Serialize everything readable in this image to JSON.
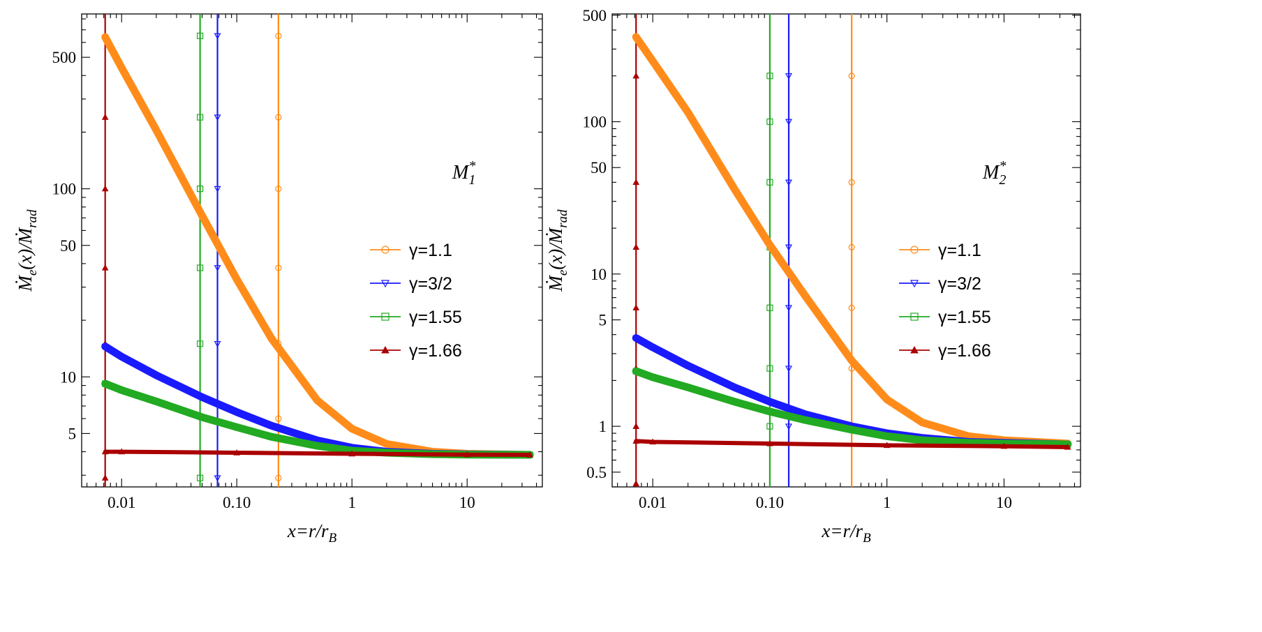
{
  "colors": {
    "gamma_1_1": "#ff8c1a",
    "gamma_3_2": "#1a1aff",
    "gamma_1_55": "#22aa22",
    "gamma_1_66": "#aa0000"
  },
  "chart_data": [
    {
      "type": "line",
      "scale": "log-log",
      "annotation": "M*1",
      "annotation_base": "M",
      "annotation_sub": "1",
      "annotation_sup": "*",
      "xlabel": "x=r/r_B",
      "xlabel_base": "x=r/r",
      "xlabel_sub": "B",
      "ylabel": "Ṁ_e(x)/Ṁ_rad",
      "ylabel_parts": [
        "Ṁ",
        "e",
        "(x)/",
        "Ṁ",
        "rad"
      ],
      "xlim": [
        0.0045,
        45
      ],
      "ylim": [
        2.6,
        850
      ],
      "xticks": [
        {
          "v": 0.01,
          "l": "0.01"
        },
        {
          "v": 0.1,
          "l": "0.10"
        },
        {
          "v": 1,
          "l": "1"
        },
        {
          "v": 10,
          "l": "10"
        }
      ],
      "yticks": [
        {
          "v": 5,
          "l": "5"
        },
        {
          "v": 10,
          "l": "10"
        },
        {
          "v": 50,
          "l": "50"
        },
        {
          "v": 100,
          "l": "100"
        },
        {
          "v": 500,
          "l": "500"
        }
      ],
      "legend_position": "middle-right",
      "series": [
        {
          "name": "γ=1.1",
          "color_key": "gamma_1_1",
          "marker": "circle",
          "x": [
            0.0072,
            0.01,
            0.02,
            0.05,
            0.1,
            0.2,
            0.5,
            1,
            2,
            5,
            10,
            35
          ],
          "y": [
            640,
            440,
            205,
            72,
            33,
            16,
            7.5,
            5.3,
            4.4,
            4.0,
            3.9,
            3.85
          ],
          "vline": {
            "x": 0.23,
            "marker_y": [
              650,
              240,
              100,
              38,
              15,
              6,
              2.9
            ]
          }
        },
        {
          "name": "γ=3/2",
          "color_key": "gamma_3_2",
          "marker": "triangle-down",
          "x": [
            0.0072,
            0.01,
            0.02,
            0.05,
            0.1,
            0.2,
            0.5,
            1,
            2,
            5,
            10,
            35
          ],
          "y": [
            14.5,
            12.8,
            10.2,
            7.8,
            6.5,
            5.5,
            4.6,
            4.2,
            4.0,
            3.9,
            3.87,
            3.85
          ],
          "vline": {
            "x": 0.068,
            "marker_y": [
              650,
              240,
              100,
              38,
              15,
              2.9
            ]
          }
        },
        {
          "name": "γ=1.55",
          "color_key": "gamma_1_55",
          "marker": "square",
          "x": [
            0.0072,
            0.01,
            0.02,
            0.05,
            0.1,
            0.2,
            0.5,
            1,
            2,
            5,
            10,
            35
          ],
          "y": [
            9.2,
            8.5,
            7.4,
            6.1,
            5.4,
            4.8,
            4.3,
            4.05,
            3.95,
            3.88,
            3.86,
            3.85
          ],
          "vline": {
            "x": 0.048,
            "marker_y": [
              650,
              240,
              100,
              38,
              15,
              2.9
            ]
          }
        },
        {
          "name": "γ=1.66",
          "color_key": "gamma_1_66",
          "marker": "triangle-up",
          "x": [
            0.0072,
            0.01,
            0.1,
            1,
            10,
            35
          ],
          "y": [
            4.0,
            4.0,
            3.95,
            3.9,
            3.86,
            3.85
          ],
          "vline": {
            "x": 0.0072,
            "marker_y": [
              650,
              240,
              100,
              38,
              15,
              2.9
            ]
          }
        }
      ]
    },
    {
      "type": "line",
      "scale": "log-log",
      "annotation": "M*2",
      "annotation_base": "M",
      "annotation_sub": "2",
      "annotation_sup": "*",
      "xlabel": "x=r/r_B",
      "xlabel_base": "x=r/r",
      "xlabel_sub": "B",
      "ylabel": "Ṁ_e(x)/Ṁ_rad",
      "ylabel_parts": [
        "Ṁ",
        "e",
        "(x)/",
        "Ṁ",
        "rad"
      ],
      "xlim": [
        0.0045,
        45
      ],
      "ylim": [
        0.4,
        510
      ],
      "xticks": [
        {
          "v": 0.01,
          "l": "0.01"
        },
        {
          "v": 0.1,
          "l": "0.10"
        },
        {
          "v": 1,
          "l": "1"
        },
        {
          "v": 10,
          "l": "10"
        }
      ],
      "yticks": [
        {
          "v": 0.5,
          "l": "0.5"
        },
        {
          "v": 1,
          "l": "1"
        },
        {
          "v": 5,
          "l": "5"
        },
        {
          "v": 10,
          "l": "10"
        },
        {
          "v": 50,
          "l": "50"
        },
        {
          "v": 100,
          "l": "100"
        },
        {
          "v": 500,
          "l": "500"
        }
      ],
      "legend_position": "middle-right",
      "series": [
        {
          "name": "γ=1.1",
          "color_key": "gamma_1_1",
          "marker": "circle",
          "x": [
            0.0072,
            0.01,
            0.02,
            0.05,
            0.1,
            0.2,
            0.5,
            1,
            2,
            5,
            10,
            35
          ],
          "y": [
            360,
            250,
            115,
            36,
            15.5,
            7.2,
            2.7,
            1.5,
            1.06,
            0.86,
            0.81,
            0.77
          ],
          "vline": {
            "x": 0.5,
            "marker_y": [
              200,
              40,
              15,
              6,
              2.4
            ]
          }
        },
        {
          "name": "γ=3/2",
          "color_key": "gamma_3_2",
          "marker": "triangle-down",
          "x": [
            0.0072,
            0.01,
            0.02,
            0.05,
            0.1,
            0.2,
            0.5,
            1,
            2,
            5,
            10,
            35
          ],
          "y": [
            3.8,
            3.3,
            2.5,
            1.8,
            1.45,
            1.2,
            1.0,
            0.9,
            0.84,
            0.79,
            0.78,
            0.76
          ],
          "vline": {
            "x": 0.145,
            "marker_y": [
              200,
              100,
              40,
              15,
              6,
              2.4,
              1
            ]
          }
        },
        {
          "name": "γ=1.55",
          "color_key": "gamma_1_55",
          "marker": "square",
          "x": [
            0.0072,
            0.01,
            0.02,
            0.05,
            0.1,
            0.2,
            0.5,
            1,
            2,
            5,
            10,
            35
          ],
          "y": [
            2.3,
            2.1,
            1.8,
            1.45,
            1.25,
            1.1,
            0.95,
            0.86,
            0.81,
            0.78,
            0.77,
            0.76
          ],
          "vline": {
            "x": 0.1,
            "marker_y": [
              200,
              100,
              40,
              15,
              6,
              2.4,
              1
            ]
          }
        },
        {
          "name": "γ=1.66",
          "color_key": "gamma_1_66",
          "marker": "triangle-up",
          "x": [
            0.0072,
            0.01,
            0.1,
            1,
            10,
            35
          ],
          "y": [
            0.8,
            0.79,
            0.77,
            0.75,
            0.74,
            0.73
          ],
          "vline": {
            "x": 0.0072,
            "marker_y": [
              200,
              40,
              15,
              6,
              2.4,
              1,
              0.42
            ]
          }
        }
      ]
    }
  ]
}
